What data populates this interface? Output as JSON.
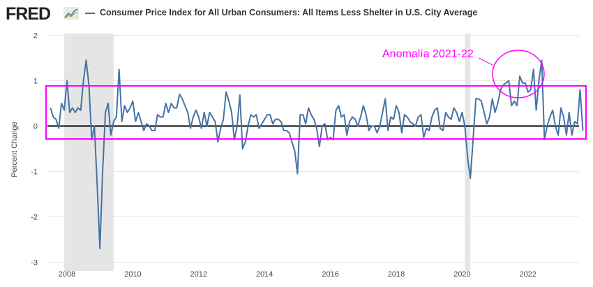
{
  "header": {
    "logo": "FRED",
    "title": "Consumer Price Index for All Urban Consumers: All Items Less Shelter in U.S. City Average"
  },
  "colors": {
    "series": "#4572a7",
    "annotation": "#ff00ff",
    "recession": "#e5e5e5",
    "zero_line": "#000000"
  },
  "chart_data": {
    "type": "line",
    "title": "Consumer Price Index for All Urban Consumers: All Items Less Shelter in U.S. City Average",
    "ylabel": "Percent Change",
    "xlabel": "",
    "ylim": [
      -3,
      2
    ],
    "yticks": [
      "2",
      "1",
      "0",
      "-1",
      "-2",
      "-3"
    ],
    "xticks": [
      "2008",
      "2010",
      "2012",
      "2014",
      "2016",
      "2018",
      "2020",
      "2022"
    ],
    "x_start": "2007-07",
    "frequency": "monthly",
    "grid": "horizontal",
    "recessions": [
      [
        "2007-12",
        "2009-06"
      ],
      [
        "2020-02",
        "2020-04"
      ]
    ],
    "series": [
      {
        "name": "Consumer Price Index for All Urban Consumers: All Items Less Shelter in U.S. City Average",
        "values": [
          0.4,
          0.2,
          0.15,
          -0.05,
          0.5,
          0.35,
          1.0,
          0.3,
          0.4,
          0.3,
          0.4,
          0.35,
          1.0,
          1.45,
          0.9,
          -0.3,
          0.0,
          -1.3,
          -2.7,
          -1.0,
          0.3,
          0.5,
          -0.2,
          0.1,
          0.2,
          1.25,
          0.1,
          0.45,
          0.3,
          0.4,
          0.55,
          0.1,
          0.3,
          0.1,
          -0.1,
          0.05,
          0.0,
          -0.1,
          -0.1,
          0.25,
          0.2,
          0.2,
          0.5,
          0.3,
          0.5,
          0.4,
          0.4,
          0.7,
          0.6,
          0.45,
          0.3,
          -0.05,
          0.2,
          0.35,
          0.2,
          -0.05,
          0.3,
          0.0,
          0.3,
          0.2,
          0.1,
          -0.35,
          -0.05,
          0.15,
          0.75,
          0.55,
          0.3,
          -0.3,
          0.0,
          0.68,
          -0.5,
          -0.35,
          0.0,
          0.25,
          0.2,
          0.25,
          -0.05,
          0.05,
          0.15,
          0.25,
          0.25,
          0.05,
          0.15,
          0.15,
          0.1,
          -0.1,
          -0.1,
          -0.15,
          -0.35,
          -0.55,
          -1.05,
          0.25,
          0.25,
          0.05,
          0.4,
          0.25,
          0.15,
          -0.05,
          -0.45,
          0.0,
          0.05,
          -0.3,
          -0.25,
          -0.3,
          0.35,
          0.45,
          0.2,
          0.25,
          -0.2,
          0.1,
          0.2,
          0.15,
          0.0,
          0.2,
          0.45,
          0.25,
          -0.1,
          0.0,
          0.0,
          -0.15,
          0.0,
          0.3,
          0.6,
          -0.1,
          0.2,
          0.15,
          0.45,
          0.3,
          -0.15,
          0.25,
          0.2,
          0.1,
          0.05,
          0.0,
          0.2,
          0.25,
          -0.25,
          -0.05,
          -0.1,
          0.2,
          0.35,
          0.4,
          -0.05,
          -0.1,
          0.3,
          0.2,
          0.15,
          0.4,
          0.3,
          0.1,
          0.3,
          0.0,
          -0.7,
          -1.15,
          -0.3,
          0.6,
          0.6,
          0.55,
          0.3,
          0.05,
          0.2,
          0.6,
          0.3,
          0.5,
          0.8,
          0.9,
          0.95,
          1.0,
          0.45,
          0.55,
          0.45,
          1.1,
          0.95,
          0.95,
          0.75,
          0.8,
          1.25,
          0.35,
          1.0,
          1.45,
          -0.3,
          0.0,
          0.2,
          0.35,
          0.0,
          -0.2,
          0.4,
          0.2,
          -0.2,
          0.3,
          -0.2,
          0.1,
          0.05,
          0.8,
          -0.1
        ]
      }
    ],
    "annotations": [
      {
        "type": "rectangle",
        "y_range": [
          -0.3,
          0.9
        ]
      },
      {
        "type": "ellipse",
        "label": "Anomalía 2021-22"
      }
    ]
  }
}
